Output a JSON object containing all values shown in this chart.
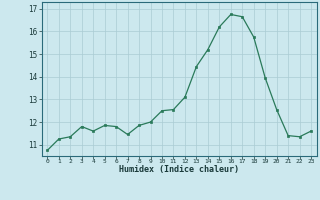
{
  "x": [
    0,
    1,
    2,
    3,
    4,
    5,
    6,
    7,
    8,
    9,
    10,
    11,
    12,
    13,
    14,
    15,
    16,
    17,
    18,
    19,
    20,
    21,
    22,
    23
  ],
  "y": [
    10.75,
    11.25,
    11.35,
    11.8,
    11.6,
    11.85,
    11.8,
    11.45,
    11.85,
    12.0,
    12.5,
    12.55,
    13.1,
    14.45,
    15.2,
    16.2,
    16.75,
    16.65,
    15.75,
    13.95,
    12.55,
    11.4,
    11.35,
    11.6
  ],
  "line_color": "#2a7a5a",
  "marker_color": "#2a7a5a",
  "bg_color": "#cce8ee",
  "grid_color": "#aaccd4",
  "xlabel": "Humidex (Indice chaleur)",
  "ylim_min": 10.5,
  "ylim_max": 17.3,
  "xlim_min": -0.5,
  "xlim_max": 23.5,
  "yticks": [
    11,
    12,
    13,
    14,
    15,
    16,
    17
  ],
  "xticks": [
    0,
    1,
    2,
    3,
    4,
    5,
    6,
    7,
    8,
    9,
    10,
    11,
    12,
    13,
    14,
    15,
    16,
    17,
    18,
    19,
    20,
    21,
    22,
    23
  ],
  "xtick_labels": [
    "0",
    "1",
    "2",
    "3",
    "4",
    "5",
    "6",
    "7",
    "8",
    "9",
    "10",
    "11",
    "12",
    "13",
    "14",
    "15",
    "16",
    "17",
    "18",
    "19",
    "20",
    "21",
    "22",
    "23"
  ],
  "ytick_labels": [
    "11",
    "12",
    "13",
    "14",
    "15",
    "16",
    "17"
  ]
}
